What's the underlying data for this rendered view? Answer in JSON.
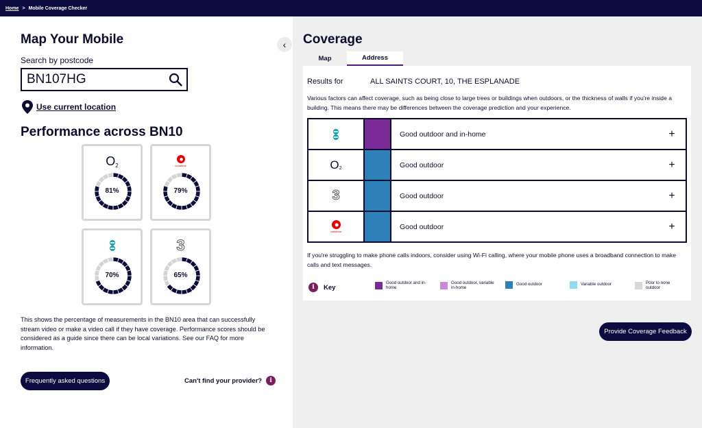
{
  "breadcrumb": {
    "home": "Home",
    "separator": ">",
    "current": "Mobile Coverage Checker"
  },
  "left": {
    "title": "Map Your Mobile",
    "search_label": "Search by postcode",
    "search_value": "BN107HG",
    "use_location": "Use current location",
    "performance_title": "Performance across BN10",
    "operators": [
      {
        "name": "O2",
        "logo_text": "O",
        "logo_sub": "2",
        "percent_label": "81%",
        "percent": 81
      },
      {
        "name": "Vodafone",
        "logo_text": "vodafone",
        "percent_label": "79%",
        "percent": 79
      },
      {
        "name": "EE",
        "logo_text": "",
        "percent_label": "70%",
        "percent": 70
      },
      {
        "name": "Three",
        "logo_text": "3",
        "percent_label": "65%",
        "percent": 65
      }
    ],
    "description": "This shows the percentage of measurements in the BN10 area that can successfully stream video or make a video call if they have coverage. Performance scores should be considered as a guide since there can be local variations. See our FAQ for more information.",
    "faq_button": "Frequently asked questions",
    "cant_find": "Can't find your provider?"
  },
  "right": {
    "title": "Coverage",
    "tabs": [
      {
        "label": "Map"
      },
      {
        "label": "Address"
      }
    ],
    "results_label": "Results for",
    "results_address": "ALL SAINTS COURT, 10, THE ESPLANADE",
    "factors_text": "Various factors can affect coverage, such as being close to large trees or buildings when outdoors, or the thickness of walls if you're inside a building. This means there may be differences between the coverage prediction and your experience.",
    "coverage_rows": [
      {
        "operator": "EE",
        "status": "Good outdoor and in-home",
        "color": "#7a2a96"
      },
      {
        "operator": "O2",
        "status": "Good outdoor",
        "color": "#2e80b8"
      },
      {
        "operator": "Three",
        "status": "Good outdoor",
        "color": "#2e80b8"
      },
      {
        "operator": "Vodafone",
        "status": "Good outdoor",
        "color": "#2e80b8"
      }
    ],
    "wifi_note": "If you're struggling to make phone calls indoors, consider using Wi-Fi calling, where your mobile phone uses a broadband connection to make calls and text messages.",
    "key_label": "Key",
    "key_items": [
      {
        "label": "Good outdoor and in-home",
        "color": "#7a2a96"
      },
      {
        "label": "Good outdoor, variable in-home",
        "color": "#c889d8"
      },
      {
        "label": "Good outdoor",
        "color": "#2e80b8"
      },
      {
        "label": "Variable outdoor",
        "color": "#8fdcf0"
      },
      {
        "label": "Poor to none outdoor",
        "color": "#d8d8d8"
      }
    ],
    "feedback_button": "Provide Coverage Feedback"
  },
  "colors": {
    "navy": "#0a0b3f",
    "ee_teal": "#1aa0a8",
    "vodafone_red": "#e60000",
    "info": "#7a1f5c"
  },
  "icons": {
    "search": "search-icon",
    "location": "location-pin-icon",
    "collapse": "chevron-left-icon",
    "info": "info-icon",
    "expand": "plus-icon"
  }
}
